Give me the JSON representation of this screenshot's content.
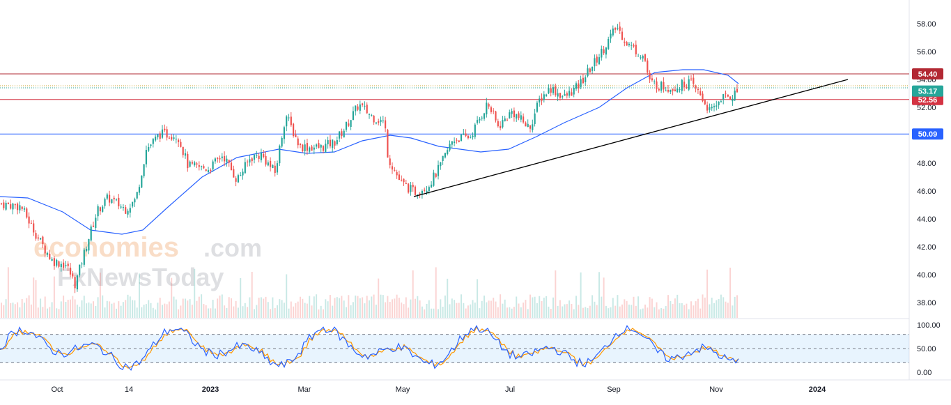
{
  "watermark": {
    "line1_a": "economies",
    "line1_b": ".com",
    "line2": "FxNewsToday"
  },
  "chart_data": {
    "type": "candlestick",
    "price_axis": {
      "ticks": [
        "58.00",
        "56.00",
        "54.00",
        "52.00",
        "50.00",
        "48.00",
        "46.00",
        "44.00",
        "42.00",
        "40.00",
        "38.00"
      ],
      "ylim": [
        37.2,
        59.2
      ]
    },
    "time_axis": {
      "labels": [
        {
          "text": "Oct",
          "bold": false
        },
        {
          "text": "14",
          "bold": false
        },
        {
          "text": "2023",
          "bold": true
        },
        {
          "text": "Mar",
          "bold": false
        },
        {
          "text": "May",
          "bold": false
        },
        {
          "text": "Jul",
          "bold": false
        },
        {
          "text": "Sep",
          "bold": false
        },
        {
          "text": "Nov",
          "bold": false
        },
        {
          "text": "2024",
          "bold": true
        }
      ]
    },
    "horizontal_levels": [
      {
        "value": 54.4,
        "label": "54.40",
        "color": "#b22833"
      },
      {
        "value": 52.56,
        "label": "52.56",
        "color": "#d43343"
      },
      {
        "value": 50.09,
        "label": "50.09",
        "color": "#2962ff"
      }
    ],
    "last_price": {
      "value": 53.17,
      "label": "53.17",
      "color": "#26a69a"
    },
    "trendline": {
      "from": [
        "2023-05-01",
        45.6
      ],
      "to": [
        "2024-01-20",
        54.0
      ],
      "color": "#000000"
    },
    "moving_average_color": "#2962ff",
    "up_color": "#26a69a",
    "down_color": "#ef5350",
    "stochastic": {
      "ticks": [
        "100.00",
        "50.00",
        "0.00"
      ],
      "upper_band": 80,
      "lower_band": 20,
      "k_color": "#2962ff",
      "d_color": "#ff9800"
    },
    "price_path": [
      [
        0,
        45.1
      ],
      [
        30,
        44.9
      ],
      [
        55,
        42.6
      ],
      [
        75,
        41.0
      ],
      [
        95,
        40.7
      ],
      [
        108,
        39.3
      ],
      [
        125,
        42.3
      ],
      [
        140,
        44.6
      ],
      [
        155,
        45.5
      ],
      [
        180,
        44.7
      ],
      [
        195,
        45.4
      ],
      [
        210,
        49.0
      ],
      [
        230,
        50.1
      ],
      [
        255,
        50.0
      ],
      [
        270,
        47.8
      ],
      [
        300,
        47.6
      ],
      [
        320,
        48.6
      ],
      [
        340,
        46.8
      ],
      [
        360,
        48.4
      ],
      [
        375,
        48.6
      ],
      [
        395,
        47.3
      ],
      [
        410,
        51.5
      ],
      [
        430,
        49.2
      ],
      [
        460,
        49.1
      ],
      [
        480,
        49.5
      ],
      [
        495,
        50.5
      ],
      [
        515,
        52.2
      ],
      [
        535,
        51.3
      ],
      [
        552,
        50.9
      ],
      [
        557,
        48.4
      ],
      [
        575,
        46.6
      ],
      [
        595,
        45.9
      ],
      [
        615,
        46.4
      ],
      [
        630,
        47.6
      ],
      [
        650,
        49.7
      ],
      [
        675,
        49.9
      ],
      [
        700,
        52.3
      ],
      [
        715,
        50.6
      ],
      [
        735,
        51.7
      ],
      [
        760,
        50.5
      ],
      [
        775,
        52.6
      ],
      [
        790,
        53.4
      ],
      [
        810,
        52.7
      ],
      [
        830,
        53.5
      ],
      [
        845,
        54.6
      ],
      [
        865,
        56.1
      ],
      [
        885,
        57.8
      ],
      [
        900,
        56.6
      ],
      [
        925,
        55.6
      ],
      [
        932,
        53.8
      ],
      [
        950,
        53.5
      ],
      [
        965,
        53.4
      ],
      [
        990,
        53.8
      ],
      [
        1005,
        52.9
      ],
      [
        1020,
        51.6
      ],
      [
        1035,
        52.7
      ],
      [
        1050,
        52.8
      ],
      [
        1060,
        53.2
      ]
    ],
    "ma_path": [
      [
        0,
        45.6
      ],
      [
        40,
        45.5
      ],
      [
        90,
        44.5
      ],
      [
        130,
        43.2
      ],
      [
        175,
        42.9
      ],
      [
        205,
        43.2
      ],
      [
        240,
        44.8
      ],
      [
        290,
        47.0
      ],
      [
        340,
        48.4
      ],
      [
        400,
        49.0
      ],
      [
        440,
        48.7
      ],
      [
        480,
        48.8
      ],
      [
        520,
        49.6
      ],
      [
        560,
        50.0
      ],
      [
        590,
        49.8
      ],
      [
        630,
        49.2
      ],
      [
        690,
        48.8
      ],
      [
        730,
        49.0
      ],
      [
        770,
        49.9
      ],
      [
        810,
        50.9
      ],
      [
        860,
        52.0
      ],
      [
        900,
        53.4
      ],
      [
        940,
        54.5
      ],
      [
        980,
        54.7
      ],
      [
        1010,
        54.7
      ],
      [
        1045,
        54.3
      ],
      [
        1060,
        53.7
      ]
    ]
  }
}
